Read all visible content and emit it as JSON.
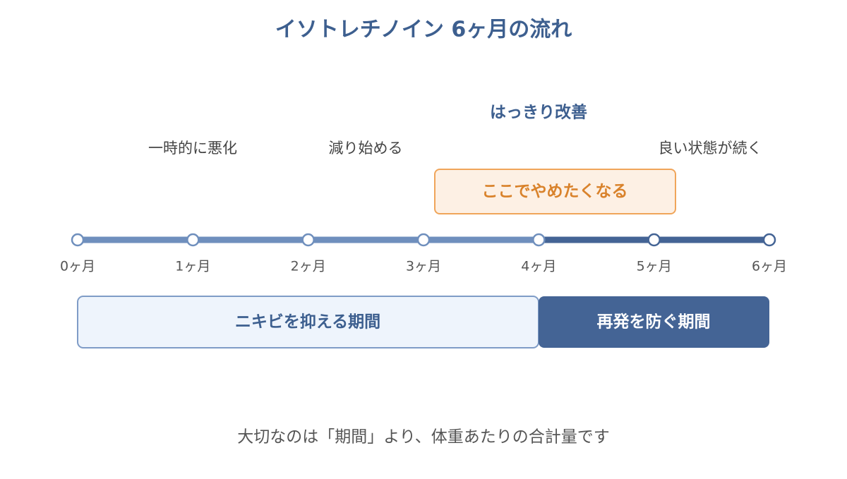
{
  "header": {
    "title": "イソトレチノイン 6ヶ月の流れ"
  },
  "timeline": {
    "ticks": [
      "0ヶ月",
      "1ヶ月",
      "2ヶ月",
      "3ヶ月",
      "4ヶ月",
      "5ヶ月",
      "6ヶ月"
    ]
  },
  "milestones": {
    "worsening": "一時的に悪化",
    "decreasing": "減り始める",
    "improved": "はっきり改善",
    "sustained": "良い状態が続く"
  },
  "callout": "ここでやめたくなる",
  "phases": [
    "ニキビを抑える期間",
    "再発を防ぐ期間"
  ],
  "footer": "大切なのは「期間」より、体重あたりの合計量です"
}
